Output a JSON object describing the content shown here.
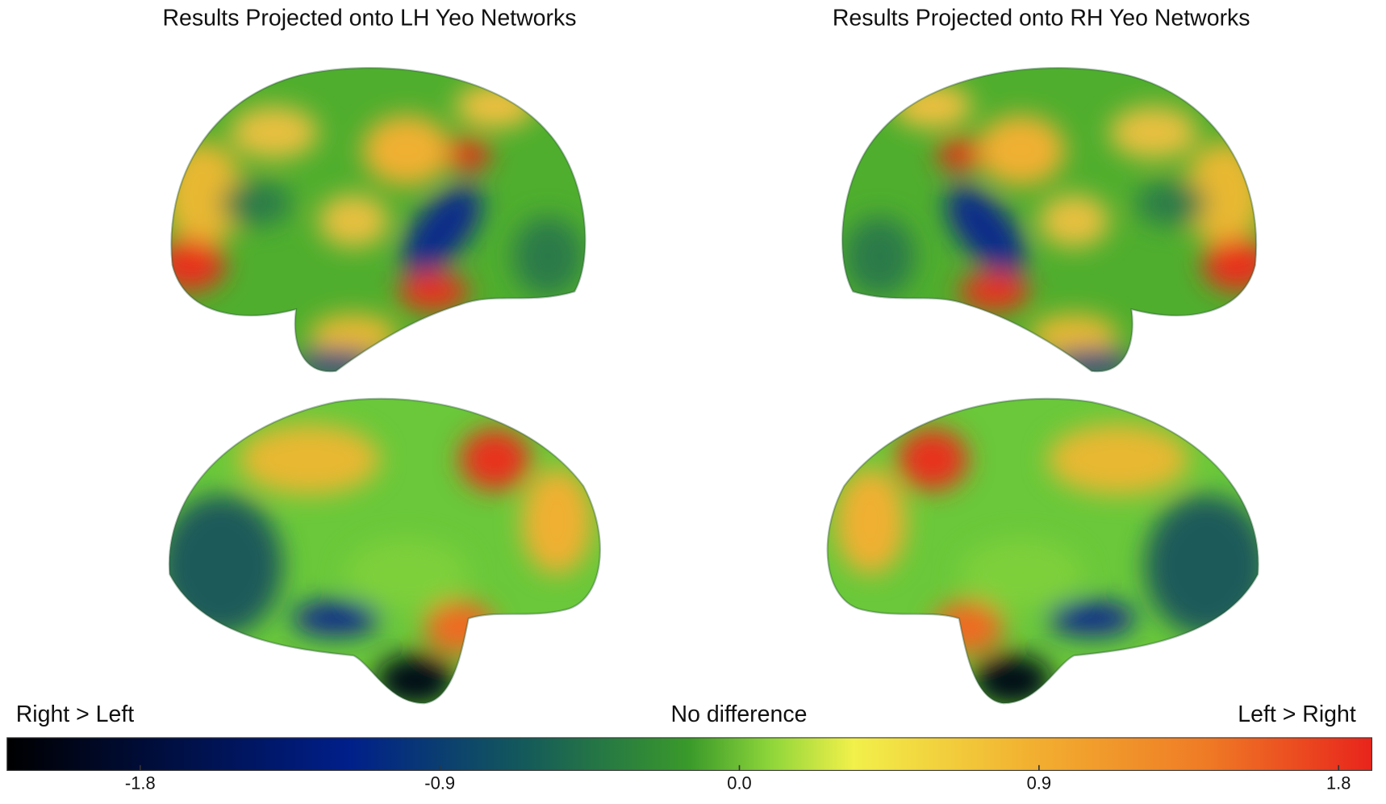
{
  "figure": {
    "panels": [
      {
        "title": "Results Projected onto LH Yeo Networks"
      },
      {
        "title": "Results Projected onto RH Yeo Networks"
      }
    ],
    "colorbar": {
      "left_label": "Right > Left",
      "center_label": "No difference",
      "right_label": "Left > Right",
      "lim": [
        -2.2,
        1.9
      ],
      "ticks": [
        -1.8,
        -0.9,
        {
          "value": 0,
          "label": "0.0"
        },
        0.9,
        1.8
      ]
    }
  }
}
